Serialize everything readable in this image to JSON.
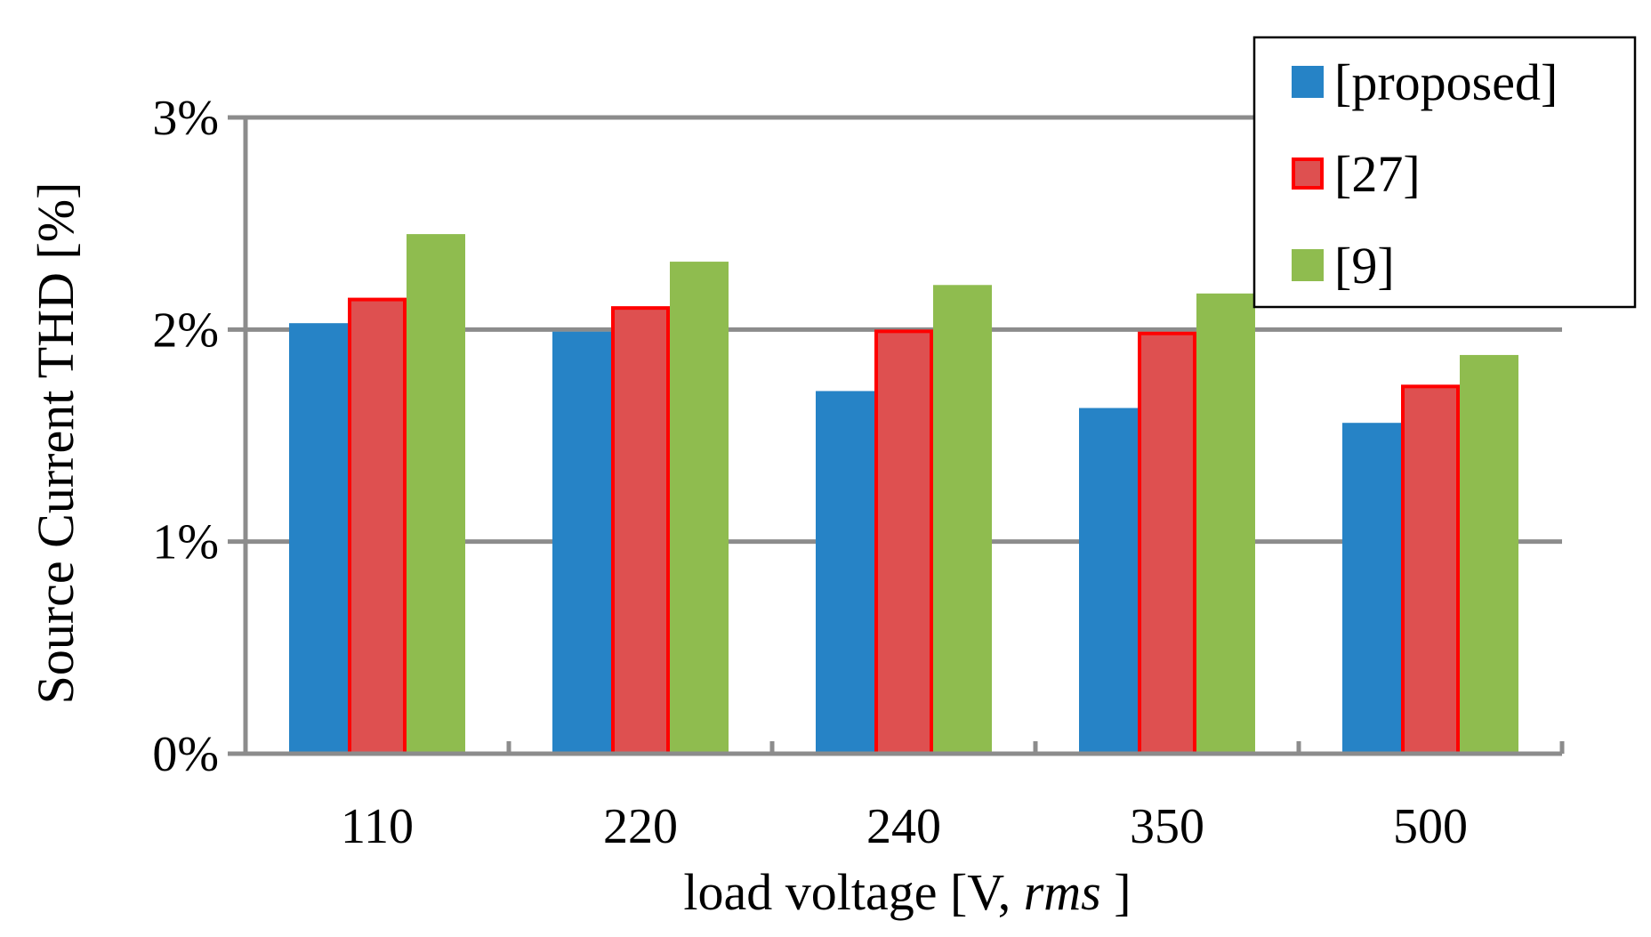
{
  "chart_data": {
    "type": "bar",
    "title": "",
    "xlabel_prefix": "load voltage [V, ",
    "xlabel_italic": "rms",
    "xlabel_suffix": " ]",
    "ylabel": "Source Current THD [%]",
    "categories": [
      "110",
      "220",
      "240",
      "350",
      "500"
    ],
    "series": [
      {
        "name": "[proposed]",
        "color": "#2683C6",
        "edge": "#2683C6",
        "values": [
          2.03,
          1.99,
          1.71,
          1.63,
          1.56
        ]
      },
      {
        "name": "[27]",
        "color": "#DE5050",
        "edge": "#FF0000",
        "values": [
          2.15,
          2.11,
          2.0,
          1.99,
          1.74
        ]
      },
      {
        "name": "[9]",
        "color": "#8FBC4F",
        "edge": "#8FBC4F",
        "values": [
          2.45,
          2.32,
          2.21,
          2.17,
          1.88
        ]
      }
    ],
    "ylim": [
      0,
      3
    ],
    "yticks": [
      0,
      1,
      2,
      3
    ],
    "ytick_labels": [
      "0%",
      "1%",
      "2%",
      "3%"
    ],
    "grid": true,
    "legend_position": "top-right"
  }
}
